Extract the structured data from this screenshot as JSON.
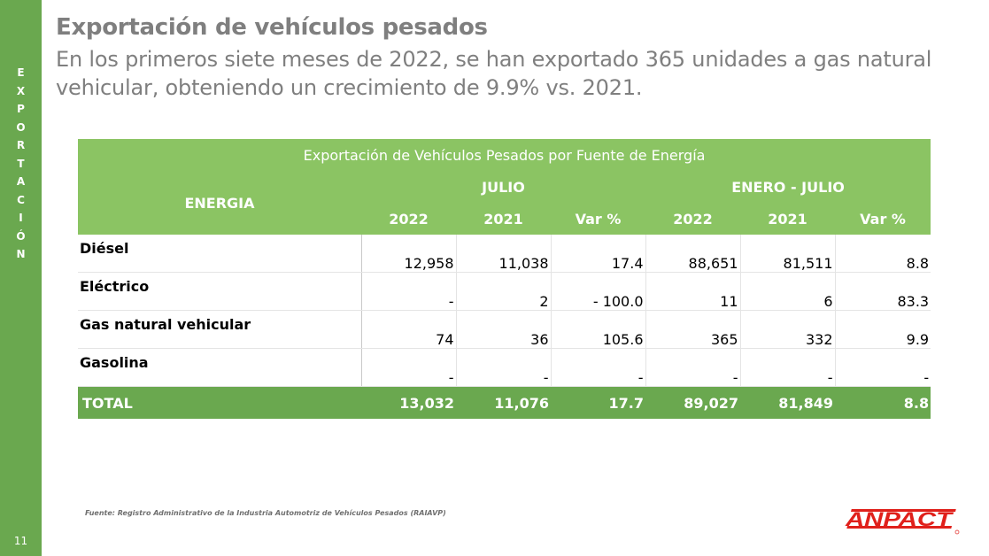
{
  "sidebar": {
    "letters": [
      "E",
      "X",
      "P",
      "O",
      "R",
      "T",
      "A",
      "C",
      "I",
      "Ó",
      "N"
    ],
    "page_number": "11",
    "color": "#6aa84f"
  },
  "header": {
    "title": "Exportación de vehículos pesados",
    "subtitle": "En los primeros siete meses de 2022, se han exportado 365 unidades a gas natural vehicular, obteniendo un crecimiento de 9.9% vs. 2021."
  },
  "table": {
    "caption": "Exportación de Vehículos Pesados por Fuente de Energía",
    "energy_header": "ENERGIA",
    "group_headers": [
      "JULIO",
      "ENERO - JULIO"
    ],
    "sub_headers": [
      "2022",
      "2021",
      "Var %",
      "2022",
      "2021",
      "Var %"
    ],
    "rows": [
      {
        "label": "Diésel",
        "values": [
          "12,958",
          "11,038",
          "17.4",
          "88,651",
          "81,511",
          "8.8"
        ]
      },
      {
        "label": "Eléctrico",
        "values": [
          "-",
          "2",
          "- 100.0",
          "11",
          "6",
          "83.3"
        ]
      },
      {
        "label": "Gas natural vehicular",
        "values": [
          "74",
          "36",
          "105.6",
          "365",
          "332",
          "9.9"
        ]
      },
      {
        "label": "Gasolina",
        "values": [
          "-",
          "-",
          "-",
          "-",
          "-",
          "-"
        ]
      }
    ],
    "total": {
      "label": "TOTAL",
      "values": [
        "13,032",
        "11,076",
        "17.7",
        "89,027",
        "81,849",
        "8.8"
      ]
    },
    "header_color": "#8bc463",
    "total_color": "#6aa84f"
  },
  "footer": {
    "source": "Fuente: Registro Administrativo de la Industria Automotriz de Vehículos Pesados (RAIAVP)",
    "logo_text": "ANPACT",
    "logo_color": "#e0201b"
  }
}
